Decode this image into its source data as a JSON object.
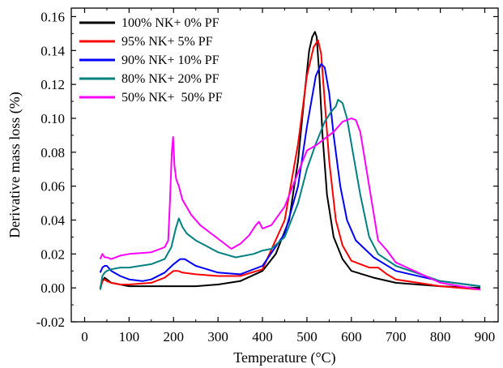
{
  "chart_data": {
    "type": "line",
    "title": "",
    "xlabel": "Temperature (°C)",
    "ylabel": "Derivative mass loss (%)",
    "xlim": [
      -30,
      930
    ],
    "ylim": [
      -0.02,
      0.165
    ],
    "xticks": [
      0,
      100,
      200,
      300,
      400,
      500,
      600,
      700,
      800,
      900
    ],
    "xtick_labels": [
      "0",
      "100",
      "200",
      "300",
      "400",
      "500",
      "600",
      "700",
      "800",
      "900"
    ],
    "yticks": [
      -0.02,
      0.0,
      0.02,
      0.04,
      0.06,
      0.08,
      0.1,
      0.12,
      0.14,
      0.16
    ],
    "ytick_labels": [
      "-0.02",
      "0.00",
      "0.02",
      "0.04",
      "0.06",
      "0.08",
      "0.10",
      "0.12",
      "0.14",
      "0.16"
    ],
    "grid": false,
    "legend_position": "top-left",
    "series": [
      {
        "name": "100% NK+ 0% PF",
        "color": "#000000",
        "x": [
          35,
          40,
          45,
          50,
          60,
          80,
          100,
          150,
          200,
          250,
          300,
          350,
          400,
          430,
          460,
          480,
          495,
          505,
          512,
          518,
          522,
          528,
          535,
          545,
          560,
          580,
          600,
          650,
          700,
          800,
          890
        ],
        "y": [
          0.0,
          0.004,
          0.006,
          0.005,
          0.003,
          0.002,
          0.001,
          0.001,
          0.001,
          0.001,
          0.002,
          0.004,
          0.01,
          0.02,
          0.04,
          0.075,
          0.115,
          0.14,
          0.148,
          0.151,
          0.148,
          0.125,
          0.09,
          0.055,
          0.03,
          0.017,
          0.01,
          0.006,
          0.003,
          0.001,
          0.0
        ]
      },
      {
        "name": "95% NK+ 5% PF",
        "color": "#ff0000",
        "x": [
          35,
          40,
          45,
          50,
          60,
          80,
          100,
          150,
          180,
          200,
          210,
          220,
          250,
          300,
          350,
          400,
          450,
          480,
          500,
          515,
          525,
          532,
          540,
          550,
          565,
          580,
          600,
          640,
          660,
          680,
          700,
          800,
          890
        ],
        "y": [
          -0.001,
          0.004,
          0.005,
          0.004,
          0.003,
          0.002,
          0.002,
          0.003,
          0.006,
          0.01,
          0.01,
          0.009,
          0.008,
          0.007,
          0.007,
          0.011,
          0.04,
          0.085,
          0.125,
          0.142,
          0.146,
          0.138,
          0.11,
          0.075,
          0.04,
          0.025,
          0.016,
          0.012,
          0.012,
          0.008,
          0.005,
          0.001,
          -0.001
        ]
      },
      {
        "name": "90% NK+ 10% PF",
        "color": "#0000ff",
        "x": [
          35,
          40,
          45,
          50,
          60,
          80,
          100,
          130,
          150,
          180,
          200,
          215,
          225,
          250,
          300,
          350,
          400,
          450,
          480,
          500,
          520,
          532,
          540,
          550,
          560,
          575,
          590,
          610,
          650,
          700,
          800,
          890
        ],
        "y": [
          0.009,
          0.012,
          0.013,
          0.013,
          0.01,
          0.007,
          0.005,
          0.004,
          0.005,
          0.009,
          0.014,
          0.017,
          0.017,
          0.013,
          0.009,
          0.008,
          0.013,
          0.032,
          0.06,
          0.095,
          0.125,
          0.132,
          0.13,
          0.115,
          0.09,
          0.06,
          0.04,
          0.028,
          0.018,
          0.01,
          0.004,
          0.001
        ]
      },
      {
        "name": "80% NK+ 20% PF",
        "color": "#008080",
        "x": [
          35,
          40,
          45,
          50,
          60,
          80,
          100,
          150,
          180,
          195,
          205,
          212,
          220,
          230,
          250,
          300,
          340,
          380,
          400,
          420,
          450,
          480,
          500,
          520,
          540,
          555,
          565,
          570,
          580,
          590,
          600,
          620,
          640,
          660,
          700,
          800,
          890
        ],
        "y": [
          -0.001,
          0.007,
          0.009,
          0.01,
          0.011,
          0.012,
          0.012,
          0.014,
          0.017,
          0.024,
          0.035,
          0.041,
          0.036,
          0.032,
          0.028,
          0.021,
          0.018,
          0.02,
          0.022,
          0.023,
          0.03,
          0.05,
          0.07,
          0.085,
          0.098,
          0.104,
          0.107,
          0.111,
          0.109,
          0.1,
          0.085,
          0.055,
          0.03,
          0.02,
          0.013,
          0.004,
          0.001
        ]
      },
      {
        "name": "50% NK+  50% PF",
        "color": "#ff00ff",
        "x": [
          35,
          40,
          45,
          50,
          60,
          80,
          100,
          150,
          180,
          188,
          192,
          196,
          199,
          202,
          206,
          212,
          220,
          240,
          260,
          300,
          330,
          350,
          370,
          385,
          392,
          400,
          420,
          450,
          480,
          500,
          520,
          540,
          560,
          580,
          600,
          610,
          620,
          640,
          660,
          680,
          700,
          800,
          890
        ],
        "y": [
          0.017,
          0.02,
          0.018,
          0.018,
          0.017,
          0.019,
          0.02,
          0.021,
          0.024,
          0.028,
          0.052,
          0.08,
          0.089,
          0.072,
          0.064,
          0.06,
          0.052,
          0.043,
          0.037,
          0.029,
          0.023,
          0.026,
          0.031,
          0.037,
          0.039,
          0.035,
          0.037,
          0.048,
          0.068,
          0.081,
          0.084,
          0.088,
          0.092,
          0.098,
          0.1,
          0.099,
          0.092,
          0.06,
          0.028,
          0.022,
          0.015,
          0.003,
          -0.001
        ]
      }
    ]
  }
}
